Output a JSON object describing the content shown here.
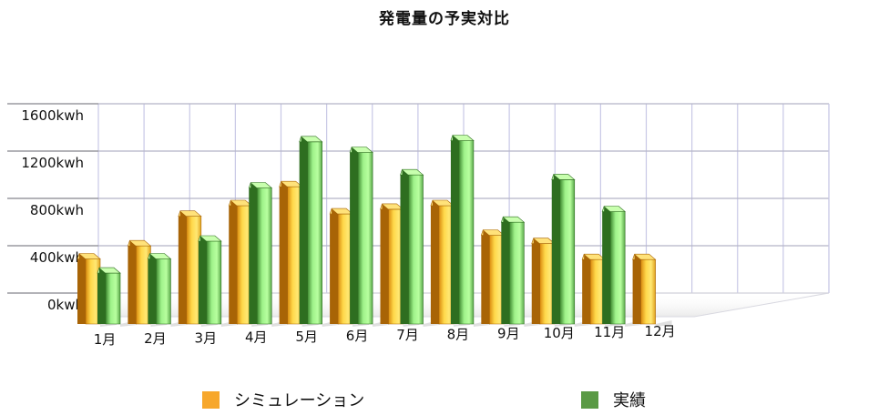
{
  "chart_data": {
    "type": "bar",
    "title": "発電量の予実対比",
    "categories": [
      "1月",
      "2月",
      "3月",
      "4月",
      "5月",
      "6月",
      "7月",
      "8月",
      "9月",
      "10月",
      "11月",
      "12月"
    ],
    "series": [
      {
        "name": "シミュレーション",
        "color": "#f5b026",
        "values": [
          550,
          660,
          910,
          1000,
          1160,
          930,
          970,
          1000,
          750,
          680,
          545,
          545
        ]
      },
      {
        "name": "実績",
        "color": "#5c9a45",
        "values": [
          430,
          550,
          700,
          1150,
          1540,
          1450,
          1260,
          1550,
          860,
          1220,
          950,
          null
        ]
      }
    ],
    "yticks": [
      "0kwh",
      "400kwh",
      "800kwh",
      "1200kwh",
      "1600kwh"
    ],
    "ylim": [
      0,
      1600
    ],
    "grid": true,
    "legend_position": "bottom"
  }
}
